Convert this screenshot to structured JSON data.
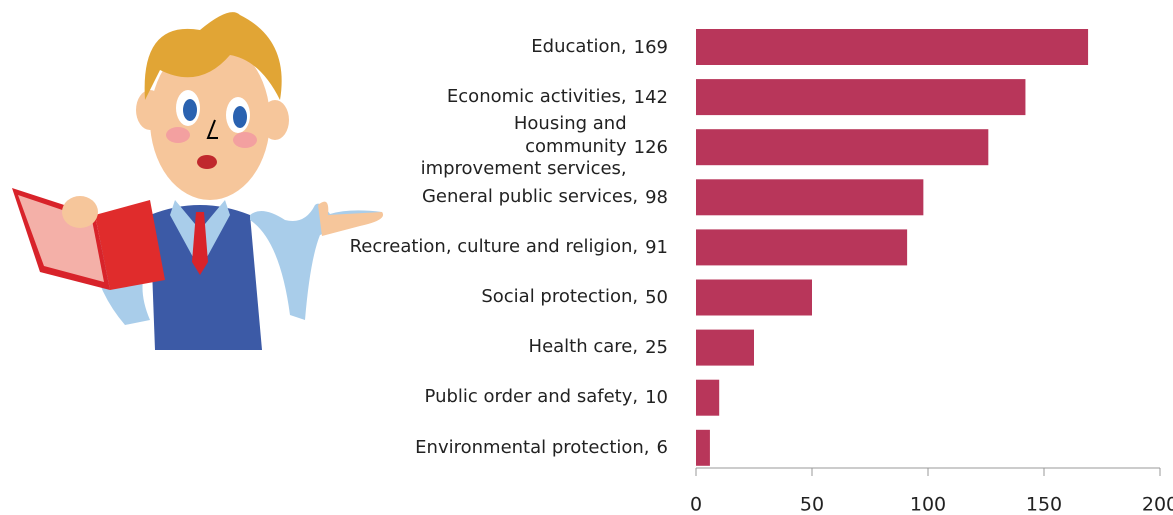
{
  "chart_data": {
    "type": "bar",
    "orientation": "horizontal",
    "categories": [
      "Education,",
      "Economic activities,",
      "Housing and community improvement services,",
      "General public services,",
      "Recreation, culture and religion,",
      "Social protection,",
      "Health care,",
      "Public order and safety,",
      "Environmental protection,"
    ],
    "values": [
      169,
      142,
      126,
      98,
      91,
      50,
      25,
      10,
      6
    ],
    "color": "#b8365a",
    "xlim": [
      0,
      200
    ],
    "xticks": [
      0,
      50,
      100,
      150,
      200
    ],
    "grid": false
  }
}
